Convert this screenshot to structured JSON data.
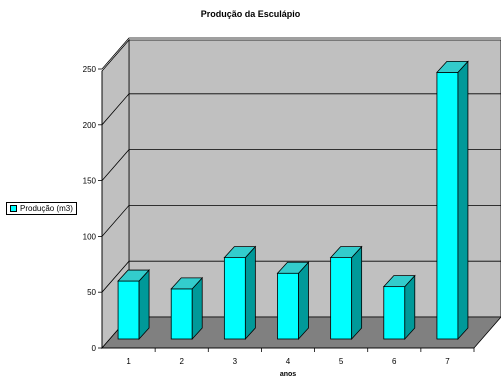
{
  "chart_data": {
    "type": "bar",
    "title": "Produção da Esculápio",
    "xlabel": "anos",
    "ylabel": "",
    "categories": [
      "1",
      "2",
      "3",
      "4",
      "5",
      "6",
      "7"
    ],
    "series": [
      {
        "name": "Produção (m3)",
        "values": [
          60,
          53,
          81,
          67,
          81,
          55,
          247
        ]
      }
    ],
    "ylim": [
      0,
      250
    ],
    "yticks": [
      "0",
      "50",
      "100",
      "150",
      "200",
      "250"
    ],
    "grid": true,
    "legend": "left",
    "colors": {
      "bar_front": "#00ffff",
      "bar_top": "#33cccc",
      "bar_side": "#009999",
      "back_wall": "#c0c0c0",
      "floor": "#808080",
      "side_wall": "#c0c0c0"
    }
  }
}
